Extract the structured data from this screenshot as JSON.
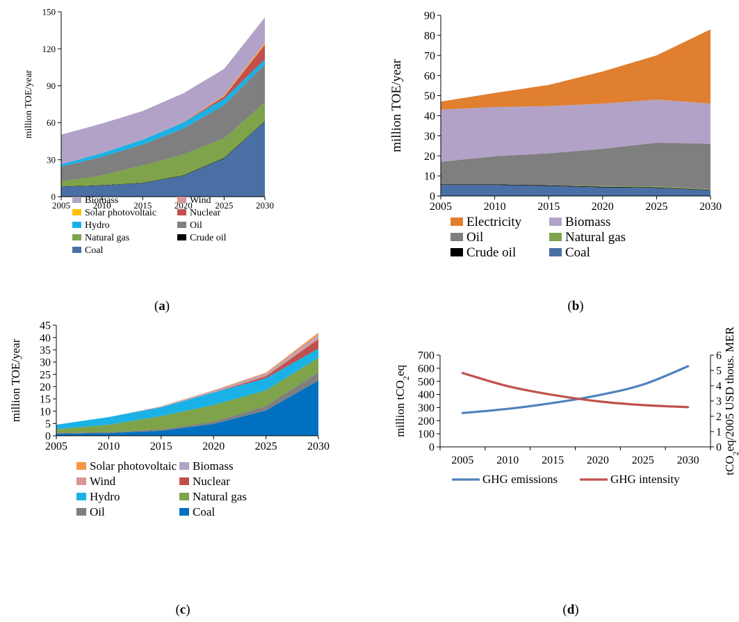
{
  "chart_data": [
    {
      "id": "a",
      "type": "area",
      "stacked": true,
      "panel_label": "a",
      "ylabel": "million TOE/year",
      "x": [
        2005,
        2010,
        2015,
        2020,
        2025,
        2030
      ],
      "xticks": [
        "2005",
        "2010",
        "2015",
        "2020",
        "2025",
        "2030"
      ],
      "ylim": [
        0,
        150
      ],
      "yticks": [
        "0",
        "30",
        "60",
        "90",
        "120",
        "150"
      ],
      "grid": false,
      "legend_position": "bottom",
      "series": [
        {
          "name": "Coal",
          "color": "#4a6fa5",
          "values": [
            8,
            9,
            11,
            17,
            31,
            61
          ]
        },
        {
          "name": "Crude oil",
          "color": "#000000",
          "values": [
            0.3,
            0.3,
            0.3,
            0.3,
            0.4,
            0.4
          ]
        },
        {
          "name": "Natural gas",
          "color": "#7ea34a",
          "values": [
            4,
            8,
            14,
            17,
            16,
            15
          ]
        },
        {
          "name": "Oil",
          "color": "#7f7f7f",
          "values": [
            12,
            15,
            17,
            21,
            27,
            31
          ]
        },
        {
          "name": "Hydro",
          "color": "#1ab2e6",
          "values": [
            2,
            3,
            4,
            5,
            5,
            4
          ]
        },
        {
          "name": "Nuclear",
          "color": "#c0504d",
          "values": [
            0,
            0,
            0,
            0,
            2,
            12
          ]
        },
        {
          "name": "Solar photovoltaic",
          "color": "#ffc000",
          "values": [
            0,
            0,
            0,
            0,
            0.3,
            0.8
          ]
        },
        {
          "name": "Wind",
          "color": "#d99694",
          "values": [
            0,
            0,
            0.2,
            0.6,
            1.0,
            1.3
          ]
        },
        {
          "name": "Biomass",
          "color": "#b2a2c7",
          "values": [
            24,
            24,
            23,
            23,
            21,
            20
          ]
        }
      ],
      "legend_order": [
        "Biomass",
        "Wind",
        "Solar photovoltaic",
        "Nuclear",
        "Hydro",
        "Oil",
        "Natural gas",
        "Crude oil",
        "Coal"
      ]
    },
    {
      "id": "b",
      "type": "area",
      "stacked": true,
      "panel_label": "b",
      "ylabel": "million TOE/year",
      "x": [
        2005,
        2010,
        2015,
        2020,
        2025,
        2030
      ],
      "xticks": [
        "2005",
        "2010",
        "2015",
        "2020",
        "2025",
        "2030"
      ],
      "ylim": [
        0,
        90
      ],
      "yticks": [
        "0",
        "10",
        "20",
        "30",
        "40",
        "50",
        "60",
        "70",
        "80",
        "90"
      ],
      "grid": false,
      "legend_position": "bottom",
      "series": [
        {
          "name": "Coal",
          "color": "#4a6fa5",
          "values": [
            5.5,
            5.5,
            5,
            4.3,
            4,
            2.8
          ]
        },
        {
          "name": "Crude oil",
          "color": "#000000",
          "values": [
            0.3,
            0.3,
            0.3,
            0.3,
            0.3,
            0.2
          ]
        },
        {
          "name": "Natural gas",
          "color": "#7ea34a",
          "values": [
            0,
            0,
            0,
            0.3,
            0.5,
            0.4
          ]
        },
        {
          "name": "Oil",
          "color": "#7f7f7f",
          "values": [
            11.2,
            14,
            16,
            18.6,
            21.7,
            22.6
          ]
        },
        {
          "name": "Biomass",
          "color": "#b2a2c7",
          "values": [
            26,
            24.5,
            23.5,
            22.5,
            21.5,
            20
          ]
        },
        {
          "name": "Electricity",
          "color": "#e07f2f",
          "values": [
            4,
            7,
            10.5,
            16,
            22,
            37
          ]
        }
      ],
      "legend_order": [
        "Electricity",
        "Biomass",
        "Oil",
        "Natural gas",
        "Crude oil",
        "Coal"
      ]
    },
    {
      "id": "c",
      "type": "area",
      "stacked": true,
      "panel_label": "c",
      "ylabel": "million TOE/year",
      "x": [
        2005,
        2010,
        2015,
        2020,
        2025,
        2030
      ],
      "xticks": [
        "2005",
        "2010",
        "2015",
        "2020",
        "2025",
        "2030"
      ],
      "ylim": [
        0,
        45
      ],
      "yticks": [
        "0",
        "5",
        "10",
        "15",
        "20",
        "25",
        "30",
        "35",
        "40",
        "45"
      ],
      "grid": false,
      "legend_position": "bottom",
      "series": [
        {
          "name": "Coal",
          "color": "#0070c0",
          "values": [
            0.8,
            1.1,
            2,
            4.8,
            10.3,
            22.5
          ]
        },
        {
          "name": "Oil",
          "color": "#7f7f7f",
          "values": [
            0.4,
            0.4,
            0.6,
            0.9,
            1.9,
            3.3
          ]
        },
        {
          "name": "Natural gas",
          "color": "#7ea34a",
          "values": [
            1.5,
            3,
            5.4,
            6.8,
            6.3,
            6
          ]
        },
        {
          "name": "Hydro",
          "color": "#1ab2e6",
          "values": [
            1.8,
            3.1,
            3.6,
            5.1,
            4.9,
            3.7
          ]
        },
        {
          "name": "Nuclear",
          "color": "#c0504d",
          "values": [
            0,
            0,
            0,
            0,
            0.8,
            3.8
          ]
        },
        {
          "name": "Wind",
          "color": "#d99694",
          "values": [
            0,
            0,
            0.1,
            0.3,
            0.5,
            0.9
          ]
        },
        {
          "name": "Biomass",
          "color": "#b2a2c7",
          "values": [
            0,
            0,
            0.2,
            0.4,
            0.6,
            0.9
          ]
        },
        {
          "name": "Solar photovoltaic",
          "color": "#f79646",
          "values": [
            0,
            0,
            0.1,
            0.2,
            0.4,
            0.9
          ]
        }
      ],
      "legend_order": [
        "Solar photovoltaic",
        "Biomass",
        "Wind",
        "Nuclear",
        "Hydro",
        "Natural gas",
        "Oil",
        "Coal"
      ]
    },
    {
      "id": "d",
      "type": "line",
      "panel_label": "d",
      "ylabel_left": "million tCO2eq",
      "ylabel_right": "tCO2eq/2005 USD thous. MER",
      "x": [
        2005,
        2010,
        2015,
        2020,
        2025,
        2030
      ],
      "xticks": [
        "2005",
        "2010",
        "2015",
        "2020",
        "2025",
        "2030"
      ],
      "ylim_left": [
        0,
        700
      ],
      "yticks_left": [
        "0",
        "100",
        "200",
        "300",
        "400",
        "500",
        "600",
        "700"
      ],
      "ylim_right": [
        0,
        6
      ],
      "yticks_right": [
        "0",
        "1",
        "2",
        "3",
        "4",
        "5",
        "6"
      ],
      "grid": false,
      "legend_position": "bottom",
      "series": [
        {
          "name": "GHG emissions",
          "color": "#4f81bd",
          "axis": "left",
          "values": [
            258,
            290,
            335,
            393,
            475,
            615
          ]
        },
        {
          "name": "GHG intensity",
          "color": "#c0504d",
          "axis": "right",
          "values": [
            4.83,
            3.97,
            3.4,
            2.98,
            2.73,
            2.6
          ]
        }
      ]
    }
  ]
}
